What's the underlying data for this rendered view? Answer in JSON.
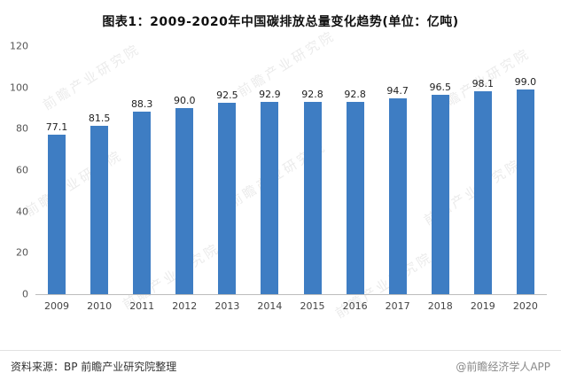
{
  "title": "图表1：2009-2020年中国碳排放总量变化趋势(单位：亿吨)",
  "chart_data": {
    "type": "bar",
    "title": "图表1：2009-2020年中国碳排放总量变化趋势(单位：亿吨)",
    "categories": [
      "2009",
      "2010",
      "2011",
      "2012",
      "2013",
      "2014",
      "2015",
      "2016",
      "2017",
      "2018",
      "2019",
      "2020"
    ],
    "values": [
      77.1,
      81.5,
      88.3,
      90.0,
      92.5,
      92.9,
      92.8,
      92.8,
      94.7,
      96.5,
      98.1,
      99.0
    ],
    "value_labels": [
      "77.1",
      "81.5",
      "88.3",
      "90.0",
      "92.5",
      "92.9",
      "92.8",
      "92.8",
      "94.7",
      "96.5",
      "98.1",
      "99.0"
    ],
    "xlabel": "",
    "ylabel": "",
    "ylim": [
      0,
      120
    ],
    "yticks": [
      0,
      20,
      40,
      60,
      80,
      100,
      120
    ],
    "grid": false,
    "legend": "none",
    "bar_color": "#3E7DC3"
  },
  "watermark": {
    "text": "前瞻产业研究院"
  },
  "footer": {
    "source": "资料来源：BP 前瞻产业研究院整理",
    "credit": "@前瞻经济学人APP"
  }
}
